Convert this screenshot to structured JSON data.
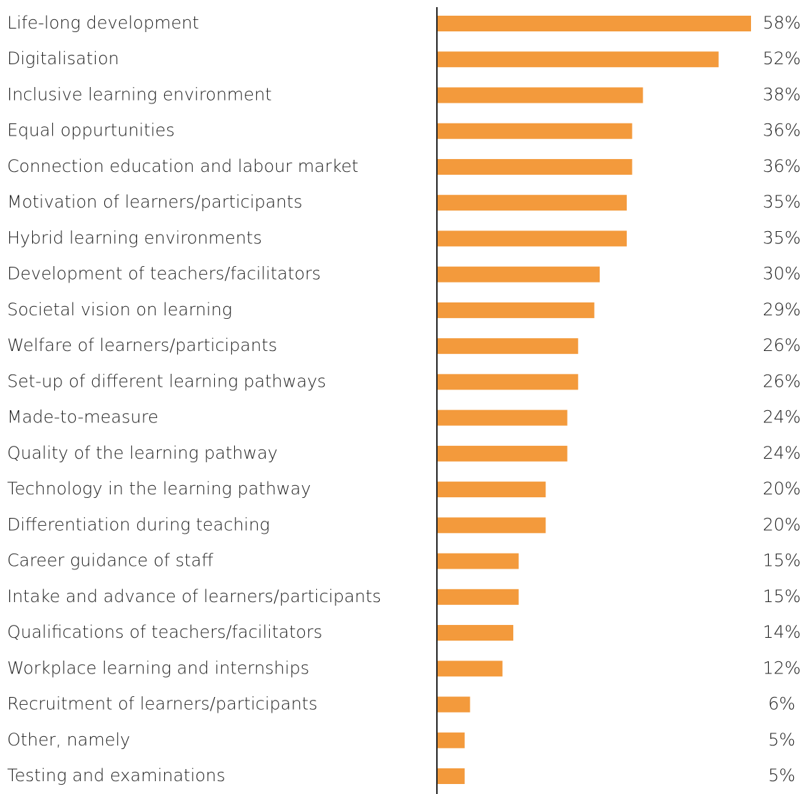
{
  "chart_data": {
    "type": "bar",
    "orientation": "horizontal",
    "color": "#f39a3c",
    "categories": [
      "Life-long development",
      "Digitalisation",
      "Inclusive learning environment",
      "Equal oppurtunities",
      "Connection education and labour market",
      "Motivation of learners/participants",
      "Hybrid learning environments",
      "Development of teachers/facilitators",
      "Societal vision on learning",
      "Welfare of learners/participants",
      "Set-up of different learning pathways",
      "Made-to-measure",
      "Quality of the learning pathway",
      "Technology in the learning pathway",
      "Differentiation during teaching",
      "Career guidance of staff",
      "Intake and advance of learners/participants",
      "Qualifications of teachers/facilitators",
      "Workplace learning and internships",
      "Recruitment of learners/participants",
      "Other, namely",
      "Testing and examinations"
    ],
    "values": [
      58,
      52,
      38,
      36,
      36,
      35,
      35,
      30,
      29,
      26,
      26,
      24,
      24,
      20,
      20,
      15,
      15,
      14,
      12,
      6,
      5,
      5
    ],
    "value_labels": [
      "58%",
      "52%",
      "38%",
      "36%",
      "36%",
      "35%",
      "35%",
      "30%",
      "29%",
      "26%",
      "26%",
      "24%",
      "24%",
      "20%",
      "20%",
      "15%",
      "15%",
      "14%",
      "12%",
      "6%",
      "5%",
      "5%"
    ]
  }
}
